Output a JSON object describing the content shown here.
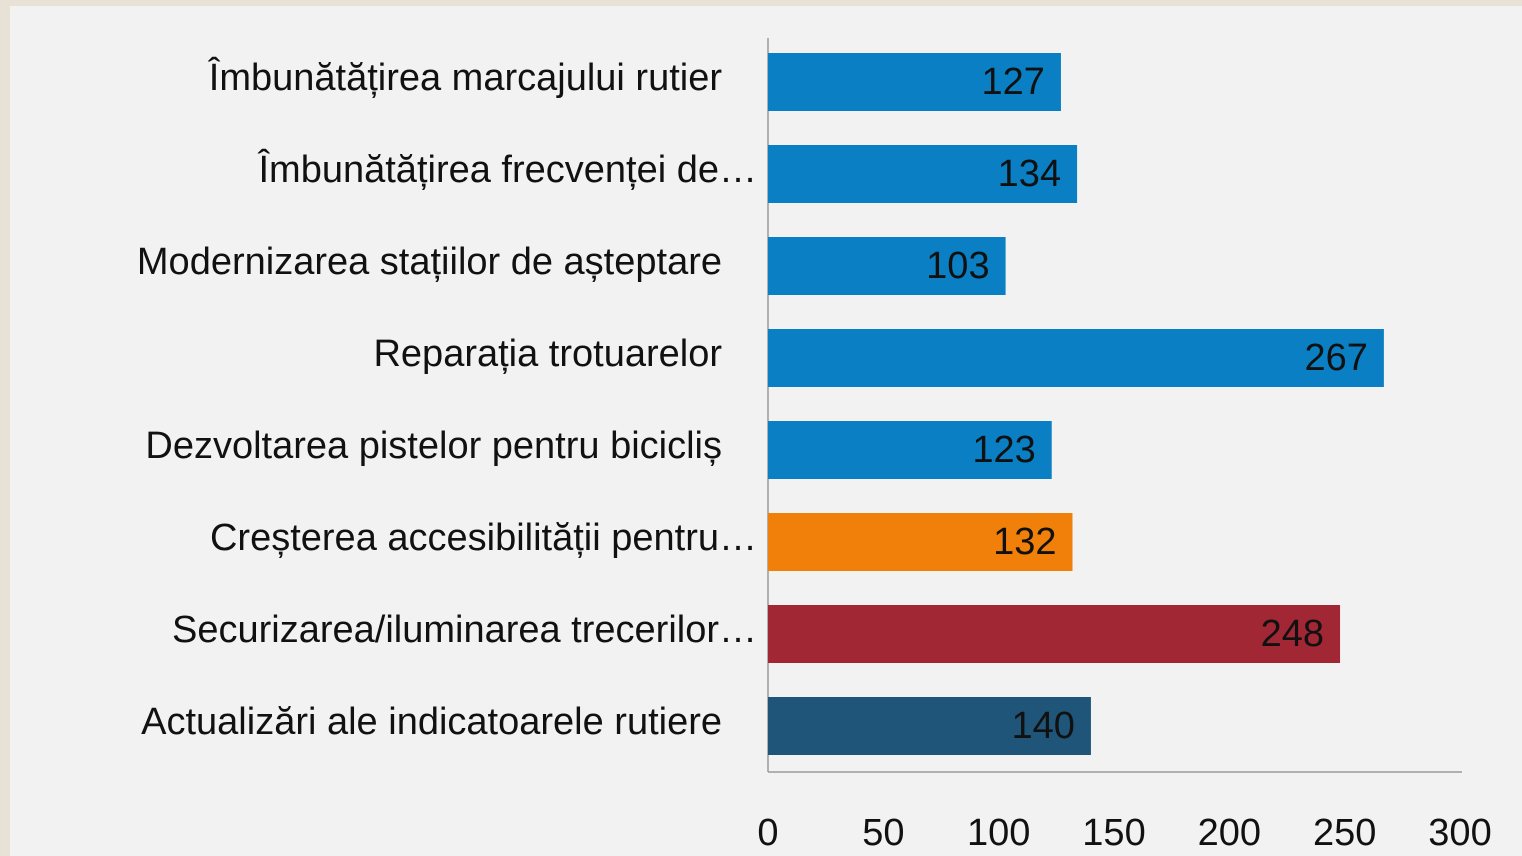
{
  "chart_data": {
    "type": "barh",
    "categories": [
      "Îmbunătățirea marcajului rutier",
      "Îmbunătățirea frecvenței de…",
      "Modernizarea stațiilor de așteptare",
      "Reparația trotuarelor",
      "Dezvoltarea pistelor pentru bicicliș",
      "Creșterea accesibilității pentru…",
      "Securizarea/iluminarea trecerilor…",
      "Actualizări ale indicatoarele rutiere"
    ],
    "values": [
      127,
      134,
      103,
      267,
      123,
      132,
      248,
      140
    ],
    "colors": [
      "#0a7fc4",
      "#0a7fc4",
      "#0a7fc4",
      "#0a7fc4",
      "#0a7fc4",
      "#f0800a",
      "#a12735",
      "#1f5578"
    ],
    "xlim": [
      0,
      300
    ],
    "xticks": [
      0,
      50,
      100,
      150,
      200,
      250,
      300
    ]
  }
}
